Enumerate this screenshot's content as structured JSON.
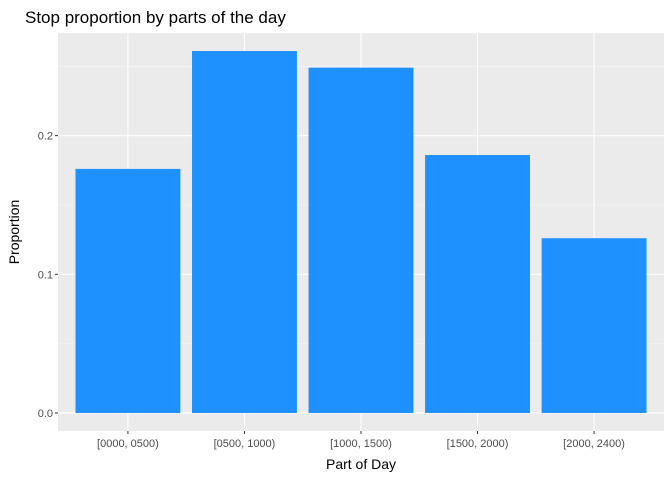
{
  "chart_data": {
    "type": "bar",
    "title": "Stop proportion by parts of the day",
    "xlabel": "Part of Day",
    "ylabel": "Proportion",
    "categories": [
      "[0000, 0500)",
      "[0500, 1000)",
      "[1000, 1500)",
      "[1500, 2000)",
      "[2000, 2400)"
    ],
    "values": [
      0.176,
      0.261,
      0.249,
      0.186,
      0.126
    ],
    "ylim": [
      -0.013,
      0.274
    ],
    "yticks": [
      0.0,
      0.1,
      0.2
    ],
    "ytick_labels": [
      "0.0",
      "0.1",
      "0.2"
    ],
    "grid": true,
    "colors": {
      "bar": "#1E90FF",
      "panel": "#EBEBEB",
      "grid_major": "#FFFFFF",
      "grid_minor": "#F5F5F5"
    }
  }
}
